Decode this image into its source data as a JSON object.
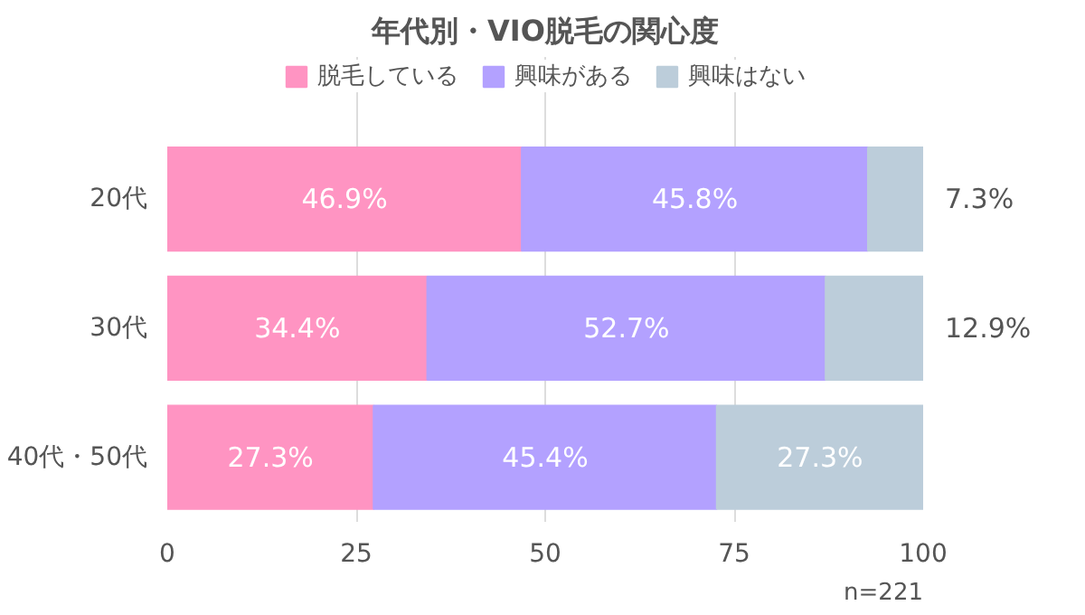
{
  "chart_data": {
    "type": "bar",
    "orientation": "horizontal",
    "stacked": true,
    "title": "年代別・VIO脱毛の関心度",
    "categories": [
      "20代",
      "30代",
      "40代・50代"
    ],
    "series": [
      {
        "name": "脱毛している",
        "color": "#ff94c2",
        "values": [
          46.9,
          34.4,
          27.3
        ],
        "value_labels": [
          "46.9%",
          "34.4%",
          "27.3%"
        ]
      },
      {
        "name": "興味がある",
        "color": "#b3a1ff",
        "values": [
          45.8,
          52.7,
          45.4
        ],
        "value_labels": [
          "45.8%",
          "52.7%",
          "45.4%"
        ]
      },
      {
        "name": "興味はない",
        "color": "#bccdda",
        "values": [
          7.3,
          12.9,
          27.3
        ],
        "value_labels": [
          "7.3%",
          "12.9%",
          "27.3%"
        ]
      }
    ],
    "xlim": [
      0,
      100
    ],
    "xticks": [
      0,
      25,
      50,
      75,
      100
    ],
    "grid": "x",
    "legend": "top",
    "data_labels": true,
    "annotations": [
      "n=221"
    ]
  }
}
